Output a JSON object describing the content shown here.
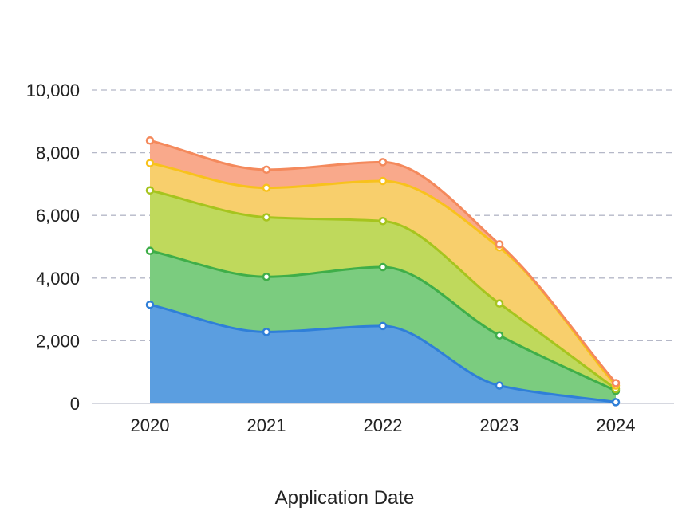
{
  "chart_data": {
    "type": "area",
    "stacked": true,
    "smooth": true,
    "title": "",
    "xlabel": "Application Date",
    "ylabel": "",
    "categories": [
      "2020",
      "2021",
      "2022",
      "2023",
      "2024"
    ],
    "ylim": [
      0,
      10000
    ],
    "yticks": [
      0,
      2000,
      4000,
      6000,
      8000,
      10000
    ],
    "ytick_labels": [
      "0",
      "2,000",
      "4,000",
      "6,000",
      "8,000",
      "10,000"
    ],
    "grid": true,
    "legend": "none",
    "series": [
      {
        "color": "#2f7fd8",
        "fill": "#5b9ee0",
        "values": [
          3150,
          2280,
          2470,
          570,
          40
        ]
      },
      {
        "color": "#3fae49",
        "fill": "#7bcc7f",
        "values": [
          1720,
          1760,
          1880,
          1600,
          360
        ]
      },
      {
        "color": "#a6c41e",
        "fill": "#bfd95c",
        "values": [
          1930,
          1900,
          1470,
          1020,
          60
        ]
      },
      {
        "color": "#f8c21c",
        "fill": "#f8cf6c",
        "values": [
          870,
          940,
          1280,
          1790,
          110
        ]
      },
      {
        "color": "#f4895c",
        "fill": "#f9a98b",
        "values": [
          720,
          580,
          600,
          100,
          80
        ]
      }
    ]
  }
}
